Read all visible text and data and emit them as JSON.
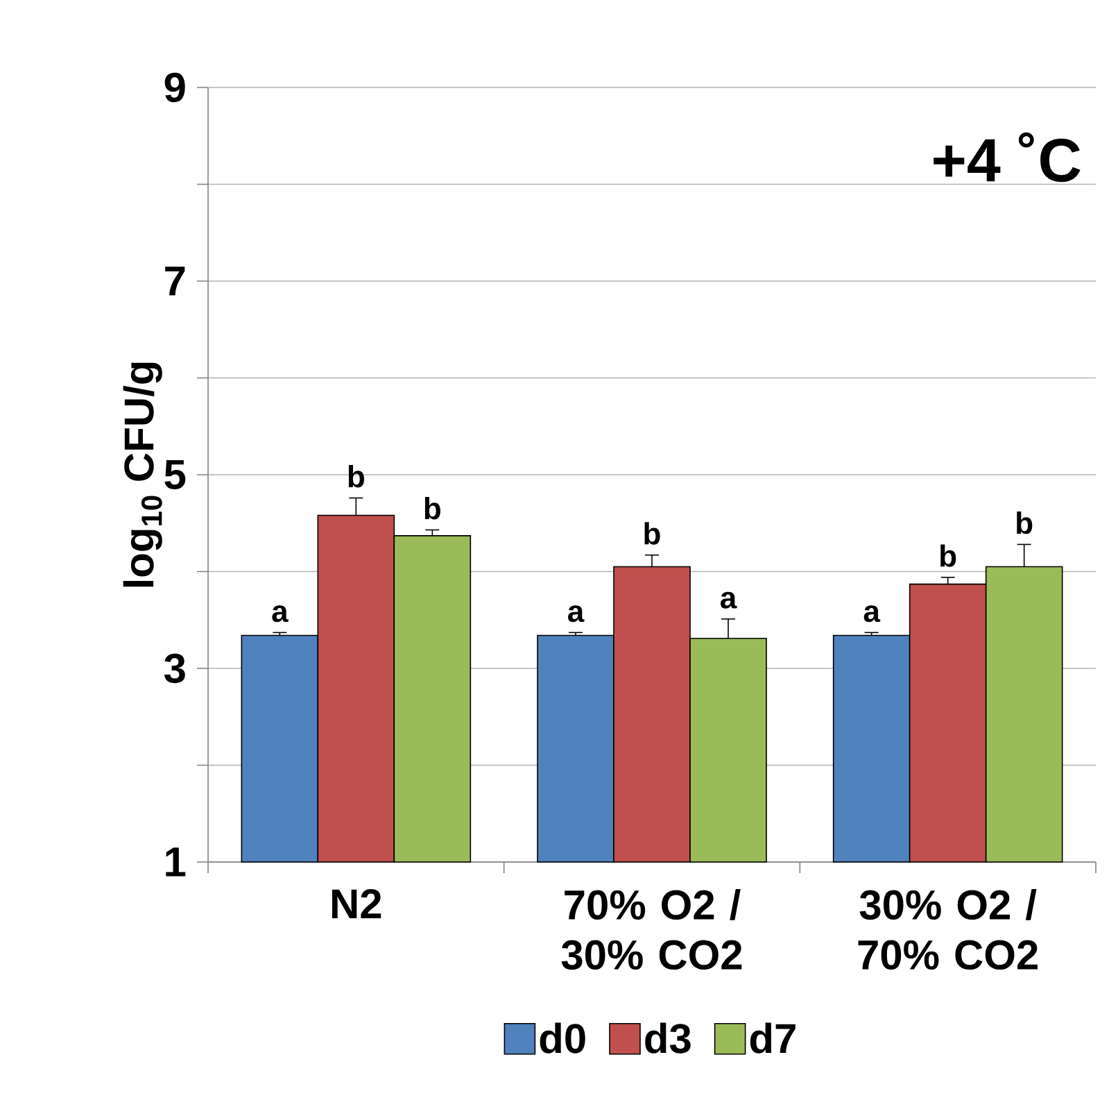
{
  "chart_data": {
    "type": "bar",
    "title": "+4 ˚C",
    "ylabel": "log$_{10}$ CFU/g",
    "categories": [
      "N2",
      "70% O2 / 30% CO2",
      "30% O2 / 70% CO2"
    ],
    "series": [
      {
        "name": "d0",
        "color": "#4f81bd",
        "values": [
          3.34,
          3.34,
          3.34
        ],
        "errors": [
          0.03,
          0.03,
          0.03
        ]
      },
      {
        "name": "d3",
        "color": "#c0504d",
        "values": [
          4.58,
          4.05,
          3.87
        ],
        "errors": [
          0.18,
          0.12,
          0.07
        ]
      },
      {
        "name": "d7",
        "color": "#9bbb59",
        "values": [
          4.37,
          3.31,
          4.05
        ],
        "errors": [
          0.06,
          0.2,
          0.23
        ]
      }
    ],
    "ylim": [
      1,
      9
    ],
    "yticks": [
      1,
      {
        "value": 2,
        "label": null
      },
      3,
      {
        "value": 4,
        "label": null
      },
      5,
      {
        "value": 6,
        "label": null
      },
      7,
      {
        "value": 8,
        "label": null
      },
      9
    ],
    "grid": "y",
    "legend": "bottom",
    "annotations": [
      "a",
      "b",
      "b",
      "a",
      "b",
      "a",
      "a",
      "b",
      "b"
    ]
  }
}
